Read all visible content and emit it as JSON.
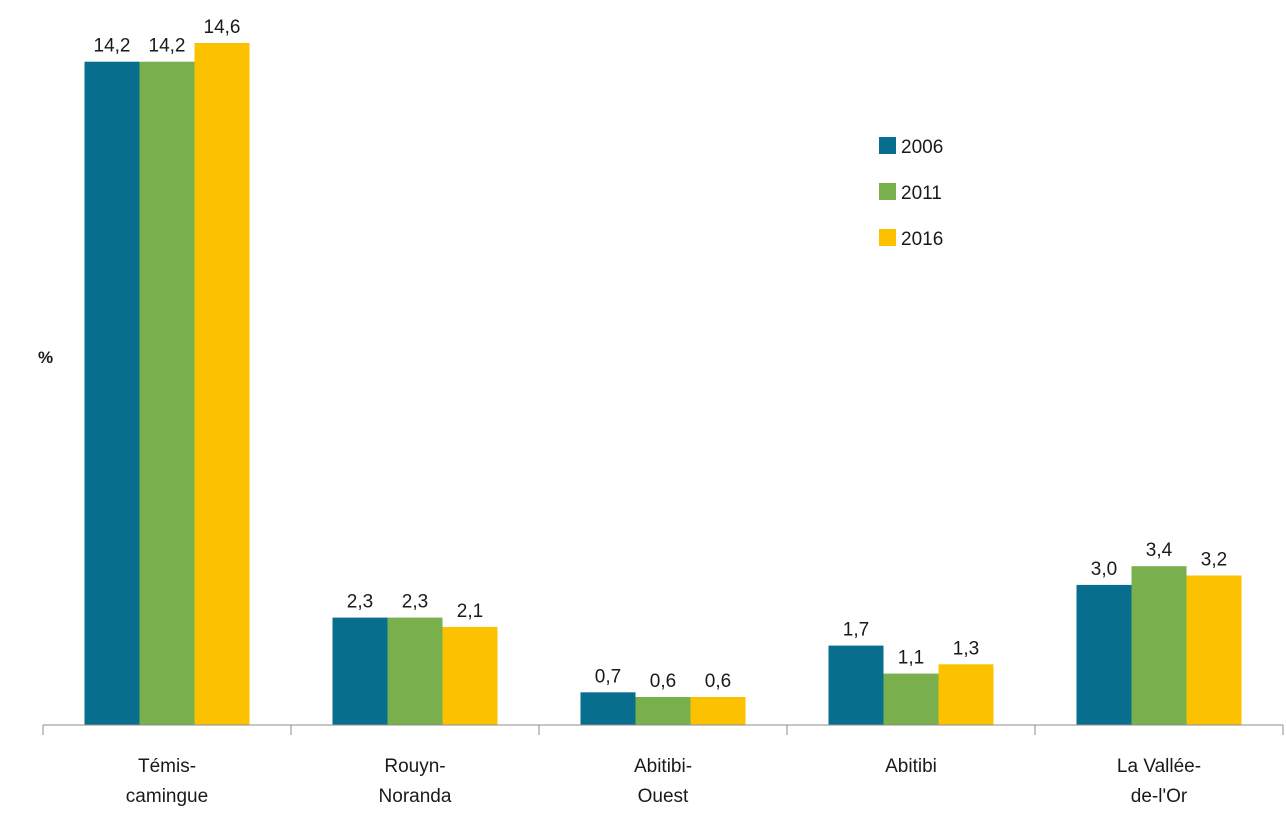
{
  "chart_data": {
    "type": "bar",
    "title": "",
    "xlabel": "",
    "ylabel": "%",
    "categories": [
      [
        "Témis-",
        "camingue"
      ],
      [
        "Rouyn-",
        "Noranda"
      ],
      [
        "Abitibi-",
        "Ouest"
      ],
      [
        "Abitibi"
      ],
      [
        "La Vallée-",
        "de-l'Or"
      ]
    ],
    "series": [
      {
        "name": "2006",
        "color": "#076F8D",
        "values": [
          14.2,
          2.3,
          0.7,
          1.7,
          3.0
        ],
        "labels": [
          "14,2",
          "2,3",
          "0,7",
          "1,7",
          "3,0"
        ]
      },
      {
        "name": "2011",
        "color": "#7AAF4E",
        "values": [
          14.2,
          2.3,
          0.6,
          1.1,
          3.4
        ],
        "labels": [
          "14,2",
          "2,3",
          "0,6",
          "1,1",
          "3,4"
        ]
      },
      {
        "name": "2016",
        "color": "#FCC200",
        "values": [
          14.6,
          2.1,
          0.6,
          1.3,
          3.2
        ],
        "labels": [
          "14,6",
          "2,1",
          "0,6",
          "1,3",
          "3,2"
        ]
      }
    ],
    "ylim": [
      0,
      14.6
    ],
    "grid": false,
    "legend_position": "top-right",
    "axis_color": "#8c8c8c"
  }
}
